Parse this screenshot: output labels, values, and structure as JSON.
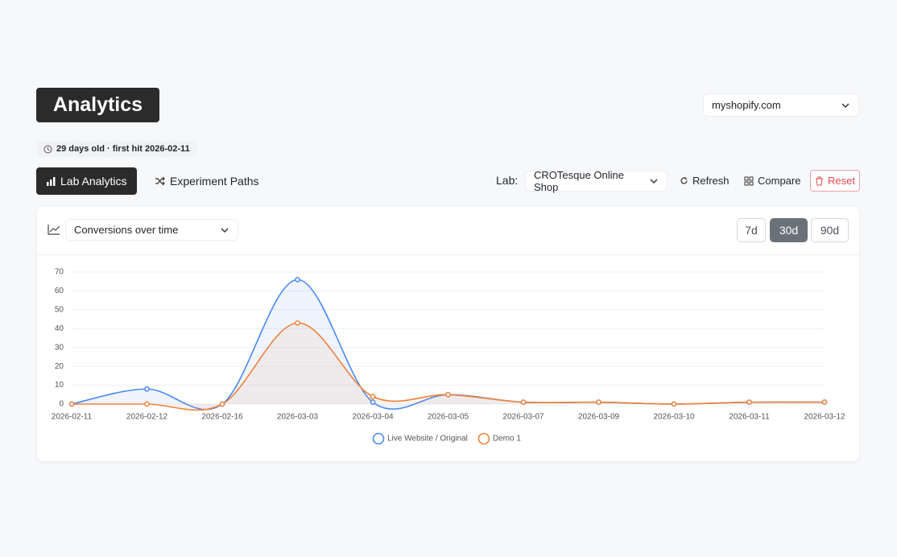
{
  "header": {
    "title": "Analytics",
    "site_select": "myshopify.com",
    "age_badge": "29 days old · first hit 2026-02-11"
  },
  "toolbar": {
    "tabs": [
      "Lab Analytics",
      "Experiment Paths"
    ],
    "lab_label": "Lab:",
    "lab_select": "CROTesque Online Shop",
    "actions": [
      "Refresh",
      "Compare",
      "Reset"
    ]
  },
  "card": {
    "metric_select": "Conversions over time",
    "ranges": [
      "7d",
      "30d",
      "90d"
    ]
  },
  "chart_data": {
    "type": "line",
    "categories": [
      "2026-02-11",
      "2026-02-12",
      "2026-02-16",
      "2026-03-03",
      "2026-03-04",
      "2026-03-05",
      "2026-03-07",
      "2026-03-09",
      "2026-03-10",
      "2026-03-11",
      "2026-03-12"
    ],
    "series": [
      {
        "name": "Live Website / Original",
        "color": "#4a89f3",
        "values": [
          0,
          8,
          0,
          66,
          1,
          5,
          1,
          1,
          0,
          1,
          1
        ]
      },
      {
        "name": "Demo 1",
        "color": "#f0823c",
        "values": [
          0,
          0,
          0,
          43,
          4,
          5,
          1,
          1,
          0,
          1,
          1
        ]
      }
    ],
    "ylim": [
      0,
      70
    ],
    "yticks": [
      0,
      10,
      20,
      30,
      40,
      50,
      60,
      70
    ],
    "grid": true
  }
}
